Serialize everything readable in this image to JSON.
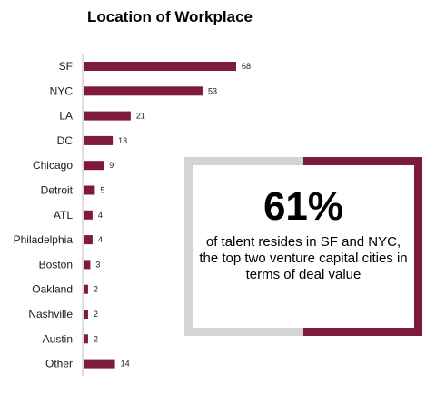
{
  "title": "Location of Workplace",
  "colors": {
    "bar": "#7e1b3a",
    "frame_gray": "#d4d4d4",
    "frame_accent": "#7e1b3a"
  },
  "callout": {
    "percent": "61%",
    "text": "of talent resides in SF and NYC, the top two venture capital cities in terms of deal value"
  },
  "chart_data": {
    "type": "bar",
    "orientation": "horizontal",
    "title": "Location of Workplace",
    "categories": [
      "SF",
      "NYC",
      "LA",
      "DC",
      "Chicago",
      "Detroit",
      "ATL",
      "Philadelphia",
      "Boston",
      "Oakland",
      "Nashville",
      "Austin",
      "Other"
    ],
    "values": [
      68,
      53,
      21,
      13,
      9,
      5,
      4,
      4,
      3,
      2,
      2,
      2,
      14
    ],
    "data_labels": true,
    "grid": false,
    "legend": "none"
  }
}
